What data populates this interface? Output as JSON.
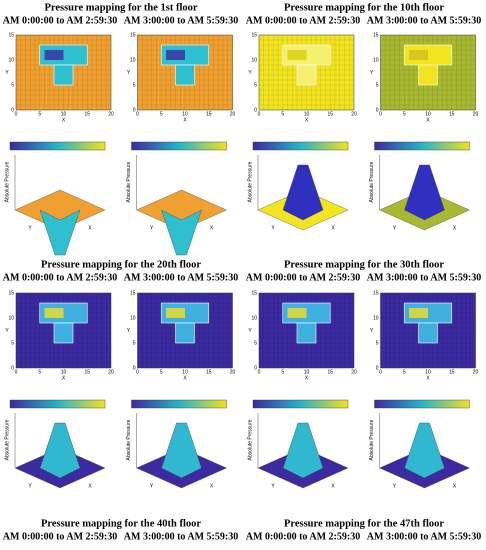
{
  "panels": [
    {
      "title": "Pressure mapping for the 1st floor",
      "times": [
        "AM 0:00:00 to AM 2:59:30",
        "AM 3:00:00 to AM 5:59:30"
      ]
    },
    {
      "title": "Pressure mapping for the 10th floor",
      "times": [
        "AM 0:00:00 to AM 2:59:30",
        "AM 3:00:00 to AM 5:59:30"
      ]
    },
    {
      "title": "Pressure mapping for the 20th floor",
      "times": [
        "AM 0:00:00 to AM 2:59:30",
        "AM 3:00:00 to AM 5:59:30"
      ]
    },
    {
      "title": "Pressure mapping for the 30th floor",
      "times": [
        "AM 0:00:00 to AM 2:59:30",
        "AM 3:00:00 to AM 5:59:30"
      ]
    },
    {
      "title": "Pressure mapping for the 40th floor",
      "times": [
        "AM 0:00:00 to AM 2:59:30",
        "AM 3:00:00 to AM 5:59:30"
      ]
    },
    {
      "title": "Pressure mapping for the 47th floor",
      "times": [
        "AM 0:00:00 to AM 2:59:30",
        "AM 3:00:00 to AM 5:59:30"
      ]
    }
  ],
  "axes": {
    "x": "X",
    "y": "Y",
    "z": "Absolute Pressure",
    "xticks": [
      "0",
      "5",
      "10",
      "15",
      "20"
    ],
    "yticks": [
      "0",
      "5",
      "10",
      "15"
    ]
  }
}
